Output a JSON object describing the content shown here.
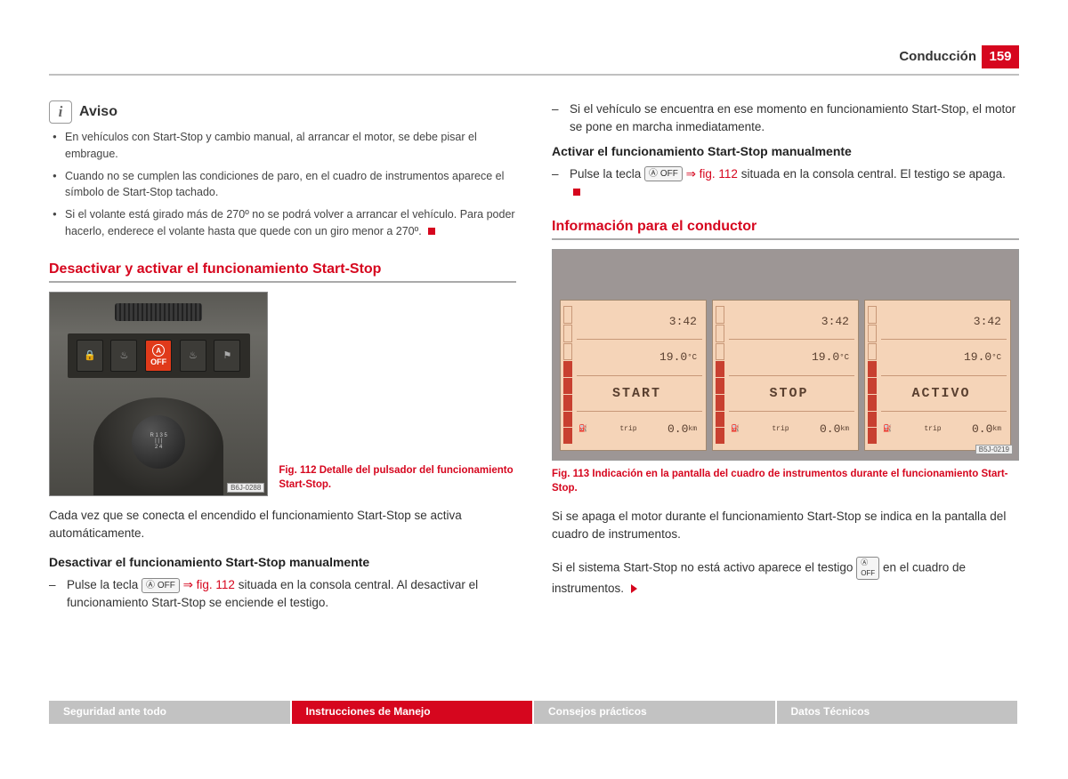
{
  "header": {
    "section": "Conducción",
    "page": "159"
  },
  "aviso": {
    "title": "Aviso",
    "items": [
      "En vehículos con Start-Stop y cambio manual, al arrancar el motor, se debe pisar el embrague.",
      "Cuando no se cumplen las condiciones de paro, en el cuadro de instrumentos aparece el símbolo de Start-Stop tachado.",
      "Si el volante está girado más de 270º no se podrá volver a arrancar el vehículo. Para poder hacerlo, enderece el volante hasta que quede con un giro menor a 270º."
    ]
  },
  "h1": "Desactivar y activar el funcionamiento Start-Stop",
  "fig112": {
    "code": "B6J-0288",
    "caption": "Fig. 112  Detalle del pulsador del funcionamiento Start-Stop.",
    "gears_top": "R 1 3 5",
    "gears_bot": "2 4"
  },
  "p1": "Cada vez que se conecta el encendido el funcionamiento Start-Stop se activa automáticamente.",
  "sub1": "Desactivar el funcionamiento Start-Stop manualmente",
  "d1a": "Pulse la tecla ",
  "d1link": "⇒ fig. 112",
  "d1b": " situada en la consola central. Al desactivar el funcionamiento Start-Stop se enciende el testigo.",
  "d2": "Si el vehículo se encuentra en ese momento en funcionamiento Start-Stop, el motor se pone en marcha inmediatamente.",
  "sub2": "Activar el funcionamiento Start-Stop manualmente",
  "d3a": "Pulse la tecla ",
  "d3link": "⇒ fig. 112",
  "d3b": " situada en la consola central. El testigo se apaga.",
  "h2": "Información para el conductor",
  "fig113": {
    "code": "B5J-0219",
    "caption": "Fig. 113  Indicación en la pantalla del cuadro de instrumentos durante el funcionamiento Start-Stop.",
    "time": "3:42",
    "temp": "19.0",
    "temp_unit": "°C",
    "trip_lbl": "trip",
    "trip_val": "0.0",
    "trip_unit": "km",
    "states": [
      "START",
      "STOP",
      "ACTIVO"
    ],
    "colors": {
      "lcd_bg": "#f5d4b8",
      "lcd_fg": "#5a4030",
      "fuel_fill": "#c84030",
      "frame": "#9d9695"
    }
  },
  "p2": "Si se apaga el motor durante el funcionamiento Start-Stop se indica en la pantalla del cuadro de instrumentos.",
  "p3a": "Si el sistema Start-Stop no está activo aparece el testigo ",
  "p3b": " en el cuadro de instrumentos.",
  "footer": [
    "Seguridad ante todo",
    "Instrucciones de Manejo",
    "Consejos prácticos",
    "Datos Técnicos"
  ],
  "btn_label": "Ⓐ OFF"
}
